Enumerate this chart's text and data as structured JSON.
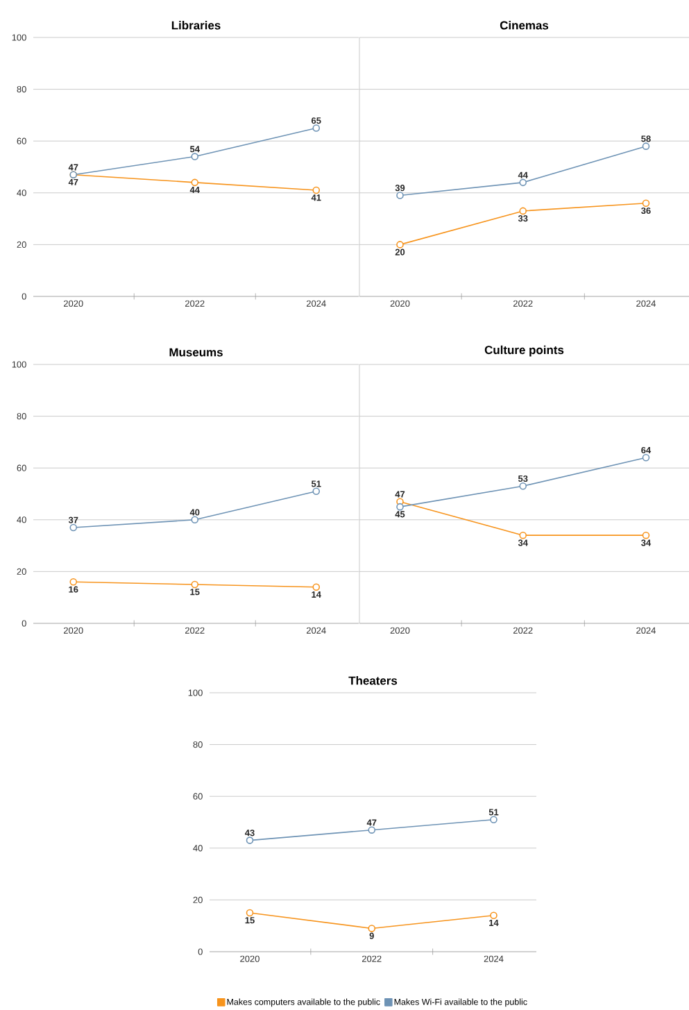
{
  "chart_data": [
    {
      "type": "line",
      "title": "Libraries",
      "categories": [
        "2020",
        "2022",
        "2024"
      ],
      "ylim": [
        0,
        100
      ],
      "yticks": [
        0,
        20,
        40,
        60,
        80,
        100
      ],
      "grid": "y",
      "marker": "circle",
      "line_style": "solid",
      "data_labels": true,
      "series": [
        {
          "color": "#f7941d",
          "values": [
            47,
            44,
            41
          ]
        },
        {
          "color": "#6e93b5",
          "values": [
            47,
            54,
            65
          ]
        }
      ]
    },
    {
      "type": "line",
      "title": "Cinemas",
      "categories": [
        "2020",
        "2022",
        "2024"
      ],
      "ylim": [
        0,
        100
      ],
      "yticks": [
        0,
        20,
        40,
        60,
        80,
        100
      ],
      "tick_labels": "x",
      "grid": "y",
      "marker": "circle",
      "line_style": "solid",
      "data_labels": true,
      "series": [
        {
          "color": "#f7941d",
          "values": [
            20,
            33,
            36
          ]
        },
        {
          "color": "#6e93b5",
          "values": [
            39,
            44,
            58
          ]
        }
      ]
    },
    {
      "type": "line",
      "title": "Museums",
      "categories": [
        "2020",
        "2022",
        "2024"
      ],
      "ylim": [
        0,
        100
      ],
      "yticks": [
        0,
        20,
        40,
        60,
        80,
        100
      ],
      "grid": "y",
      "marker": "circle",
      "line_style": "solid",
      "data_labels": true,
      "series": [
        {
          "color": "#f7941d",
          "values": [
            16,
            15,
            14
          ]
        },
        {
          "color": "#6e93b5",
          "values": [
            37,
            40,
            51
          ]
        }
      ]
    },
    {
      "type": "line",
      "title": "Culture points",
      "categories": [
        "2020",
        "2022",
        "2024"
      ],
      "ylim": [
        0,
        100
      ],
      "yticks": [
        0,
        20,
        40,
        60,
        80,
        100
      ],
      "tick_labels": "x",
      "grid": "y",
      "marker": "circle",
      "line_style": "solid",
      "data_labels": true,
      "series": [
        {
          "color": "#f7941d",
          "values": [
            47,
            34,
            34
          ]
        },
        {
          "color": "#6e93b5",
          "values": [
            45,
            53,
            64
          ]
        }
      ]
    },
    {
      "type": "line",
      "title": "Theaters",
      "categories": [
        "2020",
        "2022",
        "2024"
      ],
      "ylim": [
        0,
        100
      ],
      "yticks": [
        0,
        20,
        40,
        60,
        80,
        100
      ],
      "grid": "y",
      "marker": "circle",
      "line_style": "solid",
      "data_labels": true,
      "legend": "bottom",
      "series": [
        {
          "name": "Makes computers available to the public",
          "color": "#f7941d",
          "values": [
            15,
            9,
            14
          ]
        },
        {
          "name": "Makes Wi-Fi available to the public",
          "color": "#6e93b5",
          "values": [
            43,
            47,
            51
          ]
        }
      ]
    }
  ]
}
